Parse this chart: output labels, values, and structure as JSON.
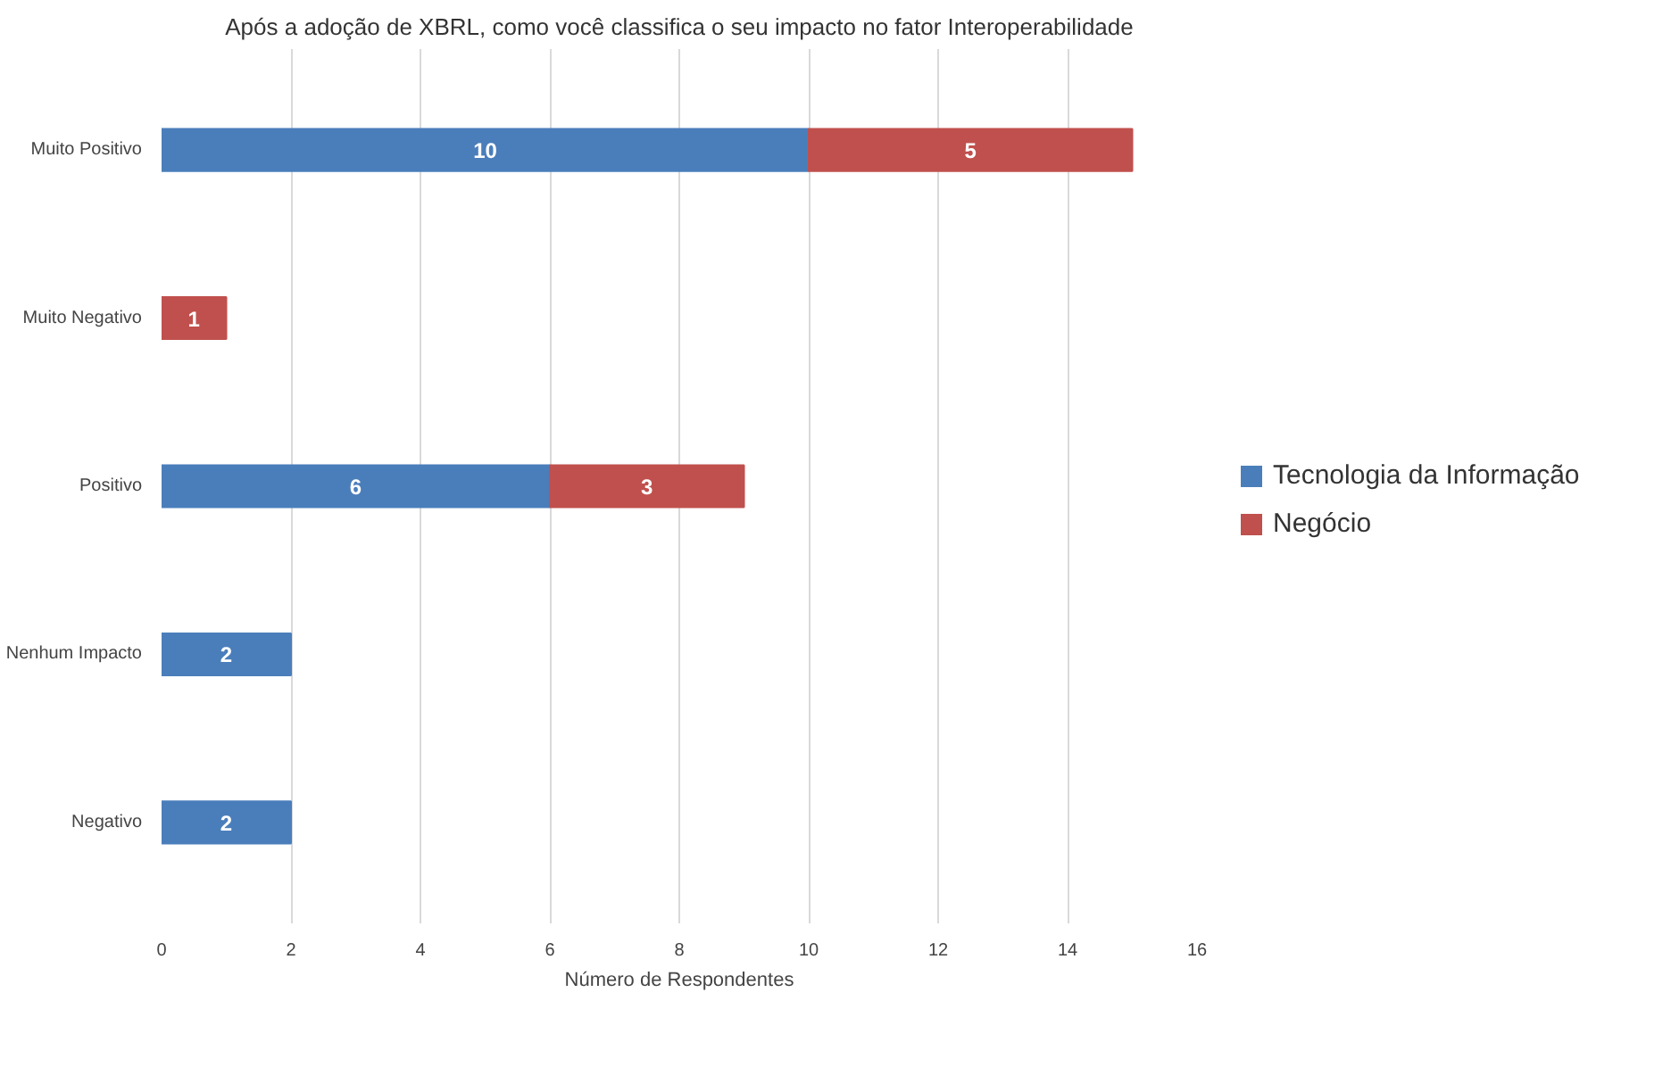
{
  "chart_data": {
    "type": "bar",
    "orientation": "horizontal",
    "stacked": true,
    "title": "Após a adoção de XBRL, como você classifica o seu impacto no fator Interoperabilidade",
    "xlabel": "Número de Respondentes",
    "categories": [
      "Muito Positivo",
      "Muito Negativo",
      "Positivo",
      "Nenhum Impacto",
      "Negativo"
    ],
    "series": [
      {
        "name": "Tecnologia da Informação",
        "color": "#4a7ebb",
        "values": [
          10,
          null,
          6,
          2,
          2
        ]
      },
      {
        "name": "Negócio",
        "color": "#c0504d",
        "values": [
          5,
          1,
          3,
          null,
          null
        ]
      }
    ],
    "xlim": [
      0,
      16
    ],
    "xticks": [
      0,
      2,
      4,
      6,
      8,
      10,
      12,
      14,
      16
    ],
    "grid": "x",
    "legend": "right",
    "data_labels": true
  }
}
